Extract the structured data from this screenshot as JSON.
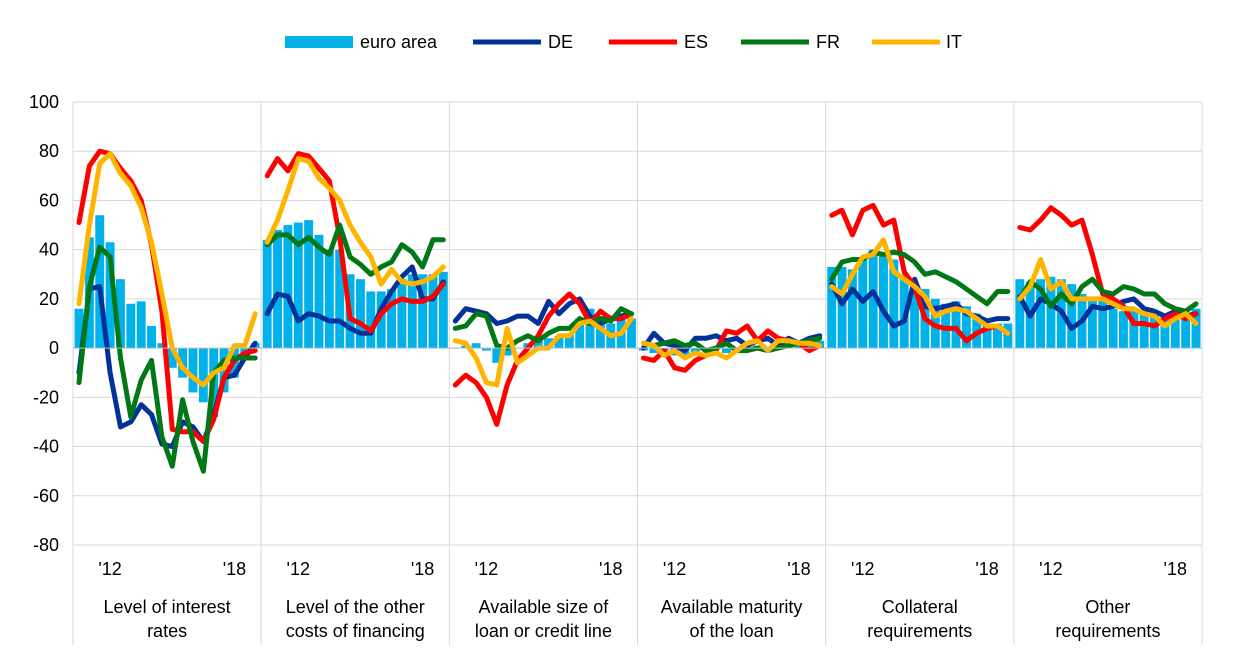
{
  "chart_data": {
    "type": "bar+line",
    "yticks": [
      100,
      80,
      60,
      40,
      20,
      0,
      -20,
      -40,
      -60,
      -80
    ],
    "ylim": [
      -80,
      100
    ],
    "grid": true,
    "legend_position": "top",
    "xtick_labels": [
      "'12",
      "'18"
    ],
    "legend": [
      {
        "key": "euro_area",
        "label": "euro area",
        "style": "bar",
        "color": "#00B1EA"
      },
      {
        "key": "DE",
        "label": "DE",
        "style": "line",
        "color": "#003299"
      },
      {
        "key": "ES",
        "label": "ES",
        "style": "line",
        "color": "#FF0000"
      },
      {
        "key": "FR",
        "label": "FR",
        "style": "line",
        "color": "#007816"
      },
      {
        "key": "IT",
        "label": "IT",
        "style": "line",
        "color": "#FFB400"
      }
    ],
    "panels": [
      {
        "label": [
          "Level of interest",
          "rates"
        ],
        "euro_area": [
          16,
          45,
          54,
          43,
          28,
          18,
          19,
          9,
          2,
          -8,
          -12,
          -18,
          -22,
          -28,
          -18,
          -12,
          -4,
          2
        ],
        "DE": [
          -10,
          24,
          25,
          -10,
          -32,
          -30,
          -23,
          -27,
          -39,
          -40,
          -30,
          -32,
          -38,
          -27,
          -12,
          -11,
          -4,
          2
        ],
        "ES": [
          51,
          74,
          80,
          79,
          73,
          68,
          60,
          42,
          15,
          -33,
          -34,
          -34,
          -38,
          -29,
          -12,
          -5,
          -2,
          -1
        ],
        "FR": [
          -14,
          25,
          41,
          37,
          -4,
          -28,
          -13,
          -5,
          -36,
          -48,
          -21,
          -38,
          -50,
          -10,
          -5,
          -4,
          -4,
          -4
        ],
        "IT": [
          18,
          50,
          75,
          79,
          71,
          66,
          57,
          43,
          22,
          0,
          -8,
          -12,
          -15,
          -10,
          -8,
          1,
          1,
          14
        ]
      },
      {
        "label": [
          "Level of the other",
          "costs of financing"
        ],
        "euro_area": [
          44,
          48,
          50,
          51,
          52,
          46,
          40,
          40,
          30,
          28,
          23,
          23,
          24,
          28,
          30,
          30,
          30,
          31
        ],
        "DE": [
          14,
          22,
          21,
          11,
          14,
          13,
          11,
          11,
          8,
          6,
          6,
          16,
          23,
          29,
          33,
          20,
          20,
          27
        ],
        "ES": [
          70,
          77,
          72,
          79,
          78,
          73,
          68,
          45,
          12,
          10,
          7,
          14,
          18,
          20,
          19,
          19,
          21,
          26
        ],
        "FR": [
          42,
          46,
          46,
          42,
          45,
          41,
          38,
          50,
          37,
          34,
          30,
          33,
          35,
          42,
          39,
          33,
          44,
          44
        ],
        "IT": [
          43,
          52,
          64,
          77,
          76,
          69,
          65,
          60,
          50,
          43,
          37,
          26,
          32,
          27,
          26,
          27,
          29,
          33
        ]
      },
      {
        "label": [
          "Available size of",
          "loan or credit line"
        ],
        "euro_area": [
          0,
          1,
          2,
          -1,
          -6,
          -3,
          0,
          2,
          3,
          4,
          5,
          6,
          12,
          16,
          13,
          10,
          12,
          12
        ],
        "DE": [
          11,
          16,
          15,
          14,
          10,
          11,
          13,
          13,
          10,
          19,
          14,
          18,
          20,
          13,
          10,
          12,
          13,
          14
        ],
        "ES": [
          -15,
          -11,
          -14,
          -20,
          -31,
          -15,
          -5,
          0,
          5,
          13,
          18,
          22,
          18,
          10,
          15,
          12,
          12,
          14
        ],
        "FR": [
          8,
          9,
          14,
          13,
          1,
          0,
          3,
          5,
          3,
          6,
          8,
          8,
          12,
          10,
          12,
          11,
          16,
          14
        ],
        "IT": [
          3,
          2,
          -4,
          -14,
          -15,
          8,
          -6,
          -3,
          0,
          0,
          5,
          5,
          10,
          11,
          8,
          5,
          6,
          12
        ]
      },
      {
        "label": [
          "Available maturity",
          "of the loan"
        ],
        "euro_area": [
          -1,
          -2,
          -1,
          -3,
          -4,
          -2,
          -1,
          0,
          -2,
          -1,
          0,
          1,
          0,
          1,
          2,
          3,
          2,
          3
        ],
        "DE": [
          0,
          6,
          2,
          1,
          -1,
          4,
          4,
          5,
          3,
          4,
          1,
          3,
          4,
          1,
          4,
          2,
          4,
          5
        ],
        "ES": [
          -4,
          -5,
          -1,
          -8,
          -9,
          -5,
          -3,
          -1,
          7,
          6,
          9,
          3,
          7,
          4,
          3,
          2,
          -1,
          1
        ],
        "FR": [
          2,
          1,
          2,
          3,
          1,
          2,
          -1,
          0,
          2,
          -1,
          -1,
          0,
          -1,
          0,
          1,
          2,
          3,
          4
        ],
        "IT": [
          2,
          1,
          -3,
          -1,
          -4,
          -2,
          -3,
          -2,
          -4,
          -1,
          2,
          3,
          -1,
          3,
          3,
          2,
          2,
          1
        ]
      },
      {
        "label": [
          "Collateral",
          "requirements"
        ],
        "euro_area": [
          33,
          33,
          32,
          37,
          40,
          38,
          36,
          30,
          26,
          24,
          20,
          18,
          19,
          17,
          14,
          10,
          10,
          10
        ],
        "DE": [
          26,
          18,
          24,
          19,
          23,
          15,
          9,
          11,
          28,
          17,
          16,
          17,
          18,
          14,
          13,
          11,
          12,
          12
        ],
        "ES": [
          54,
          56,
          46,
          56,
          58,
          50,
          52,
          31,
          25,
          12,
          9,
          8,
          8,
          3,
          6,
          8,
          9,
          6
        ],
        "FR": [
          28,
          35,
          36,
          36,
          39,
          38,
          39,
          38,
          35,
          30,
          31,
          29,
          27,
          24,
          21,
          18,
          23,
          23
        ],
        "IT": [
          25,
          22,
          30,
          37,
          38,
          44,
          31,
          28,
          25,
          21,
          13,
          15,
          16,
          15,
          12,
          9,
          9,
          6
        ]
      },
      {
        "label": [
          "Other",
          "requirements"
        ],
        "euro_area": [
          28,
          27,
          28,
          29,
          28,
          26,
          22,
          20,
          20,
          16,
          15,
          15,
          14,
          14,
          13,
          12,
          14,
          16
        ],
        "DE": [
          21,
          13,
          20,
          18,
          15,
          8,
          11,
          17,
          16,
          17,
          19,
          20,
          16,
          15,
          13,
          15,
          13,
          14
        ],
        "ES": [
          49,
          48,
          52,
          57,
          54,
          50,
          52,
          38,
          22,
          20,
          17,
          10,
          10,
          9,
          12,
          14,
          12,
          14
        ],
        "FR": [
          20,
          27,
          24,
          17,
          22,
          18,
          25,
          28,
          23,
          22,
          25,
          24,
          22,
          22,
          18,
          16,
          15,
          18
        ],
        "IT": [
          20,
          25,
          36,
          24,
          27,
          20,
          20,
          20,
          20,
          18,
          16,
          16,
          14,
          13,
          9,
          12,
          14,
          10
        ]
      }
    ]
  }
}
